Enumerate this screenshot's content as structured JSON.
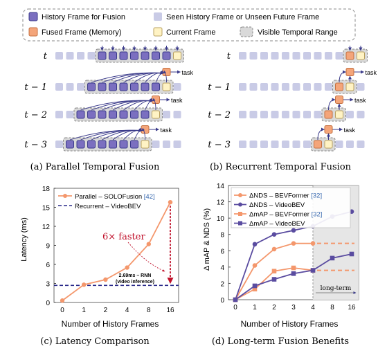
{
  "legend": {
    "history_fusion": "History Frame for Fusion",
    "seen_unseen": "Seen History Frame or Unseen Future Frame",
    "fused_memory": "Fused Frame (Memory)",
    "current": "Current Frame",
    "visible_range": "Visible Temporal Range"
  },
  "colors": {
    "history": "#6b5fa8",
    "history_fill": "#7b6fc0",
    "seen": "#c9cbe6",
    "fused": "#f4a57a",
    "current": "#fff3c4",
    "range": "#d9d9d9",
    "arrow": "#3a3a8a",
    "orange_line": "#f4976c",
    "purple_line": "#5a4ca0",
    "red": "#c0102a"
  },
  "time_labels": [
    "t",
    "t − 1",
    "t − 2",
    "t − 3"
  ],
  "task_label": "task",
  "captions": {
    "a": "(a) Parallel Temporal Fusion",
    "b": "(b) Recurrent Temporal Fusion",
    "c": "(c) Latency Comparison",
    "d": "(d) Long-term Fusion Benefits"
  },
  "latency_chart": {
    "ylabel": "Latency (ms)",
    "xlabel": "Number of History Frames",
    "legend_parallel_prefix": "Parallel – SOLOFusion ",
    "legend_parallel_ref": "[42]",
    "legend_recurrent": "Recurrent – VideoBEV",
    "annotation_faster": "6× faster",
    "annotation_rnn_1": "2.69ms – RNN",
    "annotation_rnn_2": "(video inference)"
  },
  "fusion_chart": {
    "ylabel": "Δ mAP & NDS (%)",
    "xlabel": "Number of History Frames",
    "longterm_label": "long-term",
    "legend": [
      {
        "prefix": "ΔNDS – BEVFormer ",
        "ref": "[32]"
      },
      {
        "prefix": "ΔNDS – VideoBEV",
        "ref": ""
      },
      {
        "prefix": "ΔmAP – BEVFormer ",
        "ref": "[32]"
      },
      {
        "prefix": "ΔmAP – VideoBEV",
        "ref": ""
      }
    ]
  },
  "chart_data": [
    {
      "type": "line",
      "title": "",
      "xlabel": "Number of History Frames",
      "ylabel": "Latency (ms)",
      "x_ticks": [
        "0",
        "1",
        "2",
        "4",
        "8",
        "16"
      ],
      "ylim": [
        0,
        18
      ],
      "y_ticks": [
        0,
        3,
        6,
        9,
        12,
        15,
        18
      ],
      "series": [
        {
          "name": "Parallel – SOLOFusion [42]",
          "values": [
            0.3,
            2.8,
            3.6,
            5.5,
            9.2,
            15.8
          ]
        },
        {
          "name": "Recurrent – VideoBEV",
          "values": [
            2.69,
            2.69,
            2.69,
            2.69,
            2.69,
            2.69
          ]
        }
      ]
    },
    {
      "type": "line",
      "title": "",
      "xlabel": "Number of History Frames",
      "ylabel": "Δ mAP & NDS (%)",
      "x_ticks": [
        "0",
        "1",
        "2",
        "3",
        "4",
        "8",
        "16"
      ],
      "ylim": [
        0,
        14
      ],
      "y_ticks": [
        0,
        2,
        4,
        6,
        8,
        10,
        12,
        14
      ],
      "series": [
        {
          "name": "ΔNDS – BEVFormer [32]",
          "values": [
            0,
            4.2,
            6.2,
            6.9,
            6.9
          ]
        },
        {
          "name": "ΔNDS – VideoBEV",
          "values": [
            0,
            6.8,
            8.0,
            8.5,
            9.0,
            10.2,
            10.8
          ]
        },
        {
          "name": "ΔmAP – BEVFormer [32]",
          "values": [
            0,
            1.3,
            3.5,
            3.9,
            3.6
          ]
        },
        {
          "name": "ΔmAP – VideoBEV",
          "values": [
            0,
            1.7,
            2.5,
            3.2,
            3.6,
            5.1,
            5.6
          ]
        }
      ]
    }
  ]
}
